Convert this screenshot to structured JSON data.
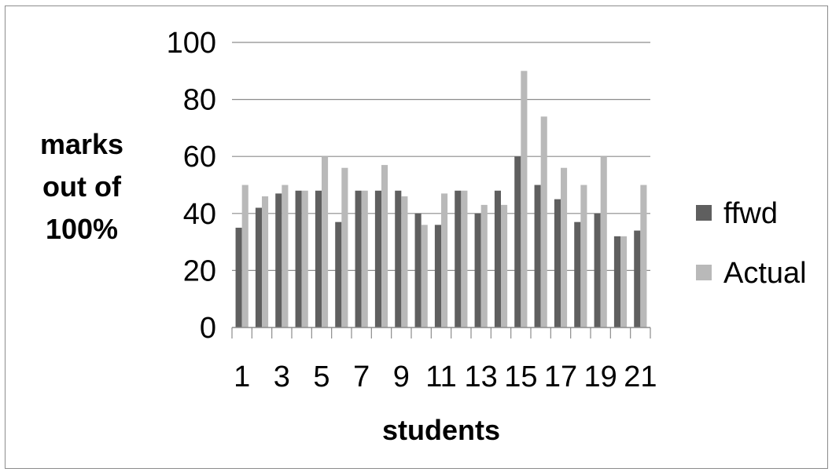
{
  "chart_data": {
    "type": "bar",
    "ylabel_lines": [
      "marks",
      "out of",
      "100%"
    ],
    "xlabel": "students",
    "ylim": [
      0,
      100
    ],
    "yticks": [
      0,
      20,
      40,
      60,
      80,
      100
    ],
    "grid": true,
    "legend_position": "right",
    "categories": [
      "1",
      "2",
      "3",
      "4",
      "5",
      "6",
      "7",
      "8",
      "9",
      "10",
      "11",
      "12",
      "13",
      "14",
      "15",
      "16",
      "17",
      "18",
      "19",
      "20",
      "21"
    ],
    "xtick_labels": [
      "1",
      "3",
      "5",
      "7",
      "9",
      "11",
      "13",
      "15",
      "17",
      "19",
      "21"
    ],
    "series": [
      {
        "name": "ffwd",
        "color": "#5f5f5f",
        "values": [
          35,
          42,
          47,
          48,
          48,
          37,
          48,
          48,
          48,
          40,
          36,
          48,
          40,
          48,
          60,
          50,
          45,
          37,
          40,
          32,
          34
        ]
      },
      {
        "name": "Actual",
        "color": "#b9b9b9",
        "values": [
          50,
          46,
          50,
          48,
          60,
          56,
          48,
          57,
          46,
          36,
          47,
          48,
          43,
          43,
          90,
          74,
          56,
          50,
          60,
          32,
          50
        ]
      }
    ]
  }
}
